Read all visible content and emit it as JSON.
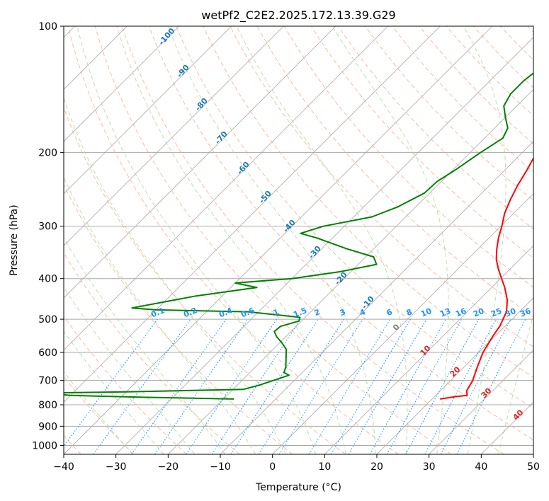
{
  "chart_data": {
    "type": "line",
    "title": "wetPf2_C2E2.2025.172.13.39.G29",
    "xlabel": "Temperature (°C)",
    "ylabel": "Pressure (hPa)",
    "xlim": [
      -40,
      50
    ],
    "ylim": [
      1050,
      100
    ],
    "y_scale": "log",
    "x_ticks": [
      "−40",
      "−30",
      "−20",
      "−10",
      "0",
      "10",
      "20",
      "30",
      "40",
      "50"
    ],
    "y_ticks": [
      "100",
      "200",
      "300",
      "400",
      "500",
      "600",
      "700",
      "800",
      "900",
      "1000"
    ],
    "grid": true,
    "series": [
      {
        "color": "#ff0000",
        "points": [
          [
            775,
            21.5
          ],
          [
            765,
            24.0
          ],
          [
            760,
            26.0
          ],
          [
            750,
            25.5
          ],
          [
            740,
            25.0
          ],
          [
            700,
            24.2
          ],
          [
            650,
            22.5
          ],
          [
            600,
            20.8
          ],
          [
            550,
            19.6
          ],
          [
            520,
            19.0
          ],
          [
            480,
            17.5
          ],
          [
            450,
            15.4
          ],
          [
            420,
            12.5
          ],
          [
            400,
            10.2
          ],
          [
            380,
            7.8
          ],
          [
            360,
            5.5
          ],
          [
            340,
            3.6
          ],
          [
            320,
            1.8
          ],
          [
            300,
            0.2
          ],
          [
            280,
            -1.7
          ],
          [
            260,
            -3.2
          ],
          [
            240,
            -4.6
          ],
          [
            220,
            -5.8
          ],
          [
            200,
            -7.3
          ],
          [
            185,
            -8.2
          ],
          [
            175,
            -8.4
          ],
          [
            160,
            -7.4
          ],
          [
            150,
            -6.9
          ],
          [
            140,
            -6.4
          ],
          [
            130,
            -6.6
          ],
          [
            120,
            -6.8
          ],
          [
            110,
            -7.3
          ],
          [
            100,
            -7.5
          ]
        ]
      },
      {
        "color": "#008000",
        "points": [
          [
            775,
            -18.0
          ],
          [
            768,
            -35.0
          ],
          [
            760,
            -50.0
          ],
          [
            750,
            -55.0
          ],
          [
            745,
            -40.0
          ],
          [
            735,
            -18.0
          ],
          [
            720,
            -16.0
          ],
          [
            700,
            -14.0
          ],
          [
            680,
            -12.0
          ],
          [
            670,
            -13.5
          ],
          [
            650,
            -14.2
          ],
          [
            620,
            -15.8
          ],
          [
            590,
            -17.5
          ],
          [
            570,
            -19.5
          ],
          [
            550,
            -21.8
          ],
          [
            535,
            -23.2
          ],
          [
            520,
            -23.0
          ],
          [
            505,
            -20.5
          ],
          [
            495,
            -21.0
          ],
          [
            480,
            -32.0
          ],
          [
            475,
            -50.0
          ],
          [
            470,
            -55.0
          ],
          [
            440,
            -45.0
          ],
          [
            420,
            -35.0
          ],
          [
            410,
            -40.0
          ],
          [
            400,
            -30.0
          ],
          [
            385,
            -22.0
          ],
          [
            370,
            -16.5
          ],
          [
            355,
            -18.5
          ],
          [
            340,
            -25.0
          ],
          [
            320,
            -33.0
          ],
          [
            312,
            -37.0
          ],
          [
            300,
            -34.0
          ],
          [
            285,
            -26.5
          ],
          [
            270,
            -23.5
          ],
          [
            250,
            -21.0
          ],
          [
            235,
            -20.8
          ],
          [
            220,
            -19.5
          ],
          [
            200,
            -18.0
          ],
          [
            185,
            -16.5
          ],
          [
            175,
            -17.5
          ],
          [
            165,
            -20.0
          ],
          [
            155,
            -22.5
          ],
          [
            145,
            -23.5
          ],
          [
            135,
            -23.5
          ],
          [
            125,
            -22.8
          ],
          [
            115,
            -22.0
          ],
          [
            108,
            -21.4
          ],
          [
            100,
            -21.2
          ]
        ]
      }
    ],
    "annotations": {
      "dry_adiabats_labels": [
        "-100",
        "-90",
        "-80",
        "-70",
        "-60",
        "-50",
        "-40",
        "-30",
        "-20",
        "-10",
        "0"
      ],
      "mixing_ratio_labels": [
        "0.1",
        "0.2",
        "0.4",
        "0.6",
        "1",
        "1.5",
        "2",
        "3",
        "4",
        "6",
        "8",
        "10",
        "13",
        "16",
        "20",
        "25",
        "30",
        "36"
      ],
      "isotherm_labels": [
        "10",
        "20",
        "30",
        "40"
      ]
    }
  }
}
